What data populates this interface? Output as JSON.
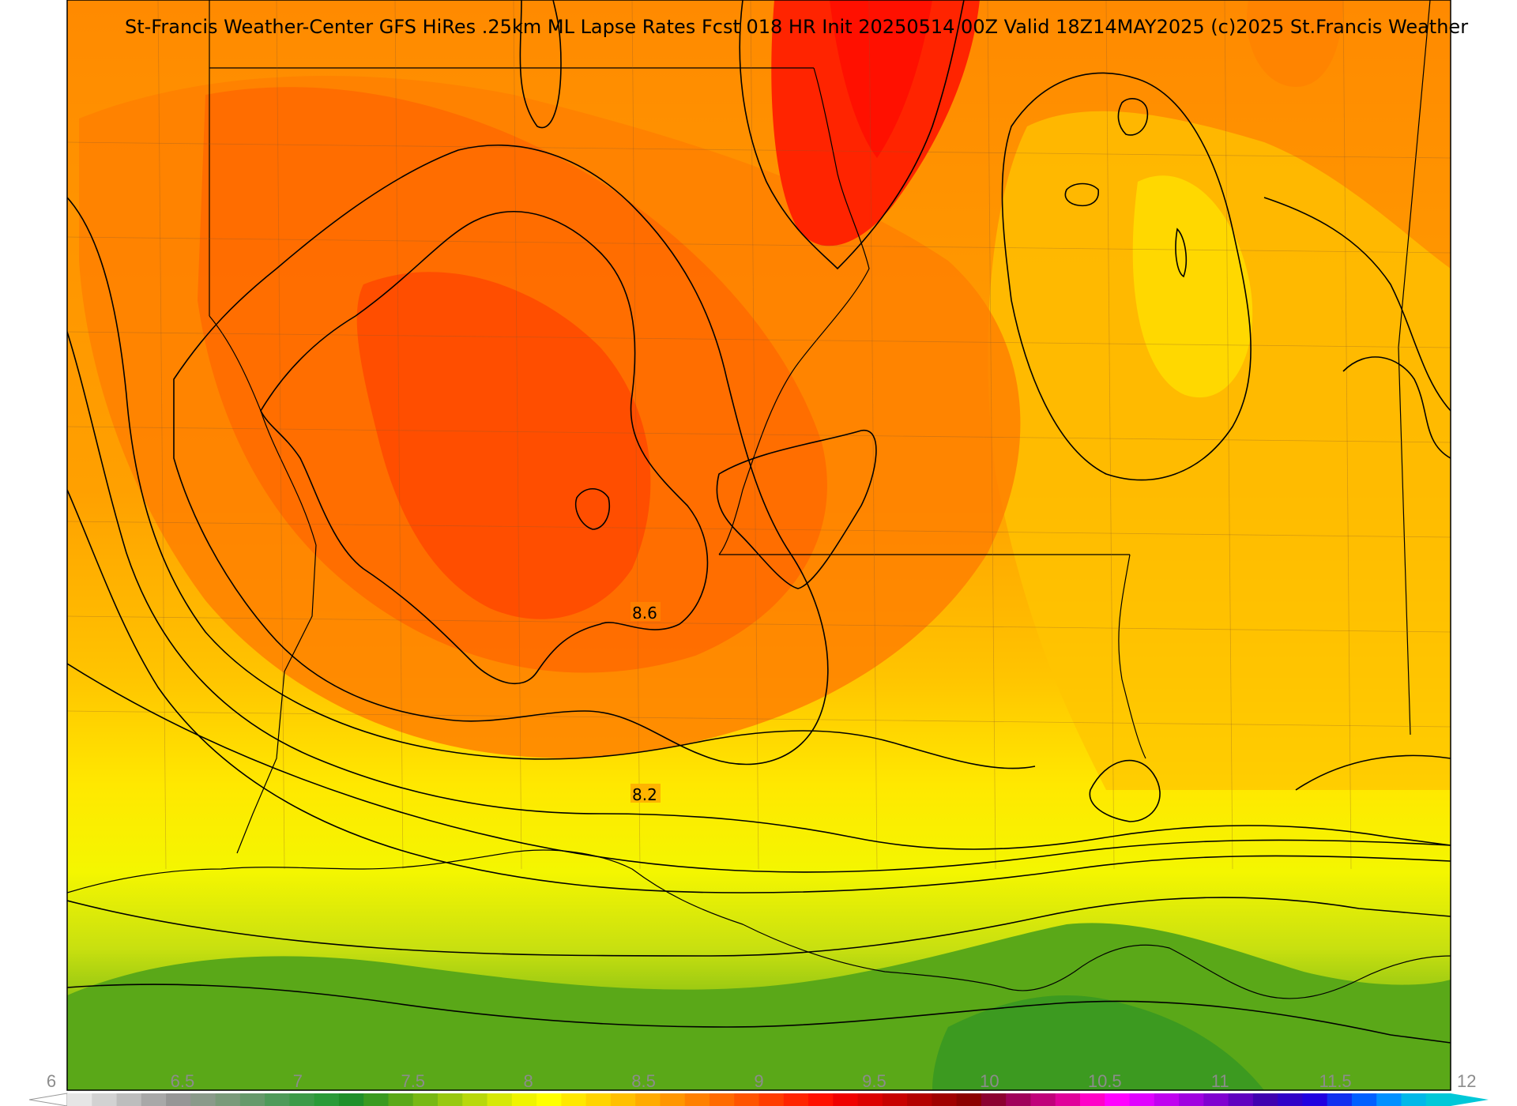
{
  "title": "St-Francis Weather-Center GFS HiRes .25km ML Lapse Rates  Fcst 018 HR Init 20250514 00Z  Valid 18Z14MAY2025    (c)2025 St.Francis Weather",
  "contour_labels": [
    "8.6",
    "8.2"
  ],
  "colorbar": {
    "min": 6,
    "max": 12,
    "ticks": [
      "6",
      "6.5",
      "7",
      "7.5",
      "8",
      "8.5",
      "9",
      "9.5",
      "10",
      "10.5",
      "11",
      "11.5",
      "12"
    ],
    "colors": [
      "#e6e6e6",
      "#d2d2d2",
      "#bdbdbd",
      "#a8a8a8",
      "#969696",
      "#8a9a8a",
      "#7a9a7a",
      "#66996b",
      "#4f9a5a",
      "#3c9a48",
      "#2a9a38",
      "#1f8f2a",
      "#3a9a20",
      "#5aa818",
      "#78b814",
      "#98c810",
      "#b8d80c",
      "#d6e808",
      "#f0f400",
      "#ffff00",
      "#ffe800",
      "#ffd400",
      "#ffc000",
      "#ffab00",
      "#ff9600",
      "#ff8000",
      "#ff6a00",
      "#ff5400",
      "#ff3c00",
      "#ff2400",
      "#ff1000",
      "#f00000",
      "#dc0000",
      "#c80000",
      "#b40000",
      "#a00000",
      "#8c0000",
      "#8c0030",
      "#a0005a",
      "#c0007a",
      "#e0009a",
      "#ff00c8",
      "#ff00ff",
      "#e000ff",
      "#c000f0",
      "#a000e0",
      "#8000d0",
      "#6000c0",
      "#4000b0",
      "#3000c8",
      "#2000e0",
      "#1030f0",
      "#0060ff",
      "#0090ff",
      "#00b8e8",
      "#00c8d8"
    ]
  },
  "legend_colors": {
    "green": "#4ea218",
    "yellow": "#ffff00",
    "orange": "#ff9600",
    "red": "#ff1000"
  }
}
